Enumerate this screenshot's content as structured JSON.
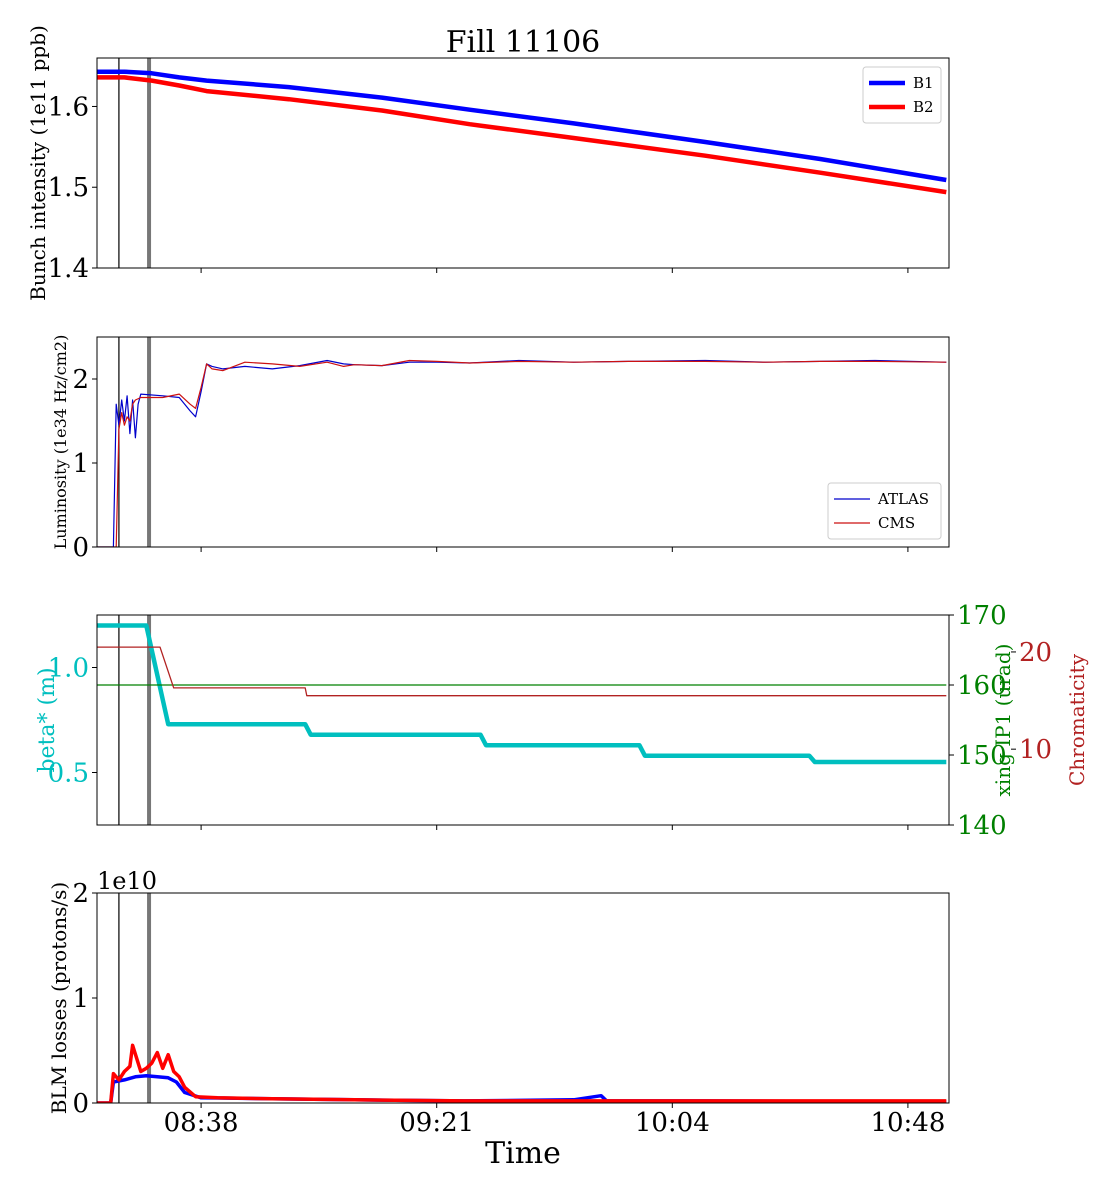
{
  "figure": {
    "title": "Fill 11106",
    "xlabel": "Time",
    "x_tick_labels": [
      "08:38",
      "09:21",
      "10:04",
      "10:48"
    ]
  },
  "colors": {
    "B1": "#0000ff",
    "B2": "#ff0000",
    "ATLAS": "#0000cc",
    "CMS": "#cc1111",
    "beta": "#00bfbf",
    "xing": "#008000",
    "chroma": "#b22222",
    "marker_thin": "#000000",
    "marker_thick": "#777777"
  },
  "chart_data": [
    {
      "type": "line",
      "ylabel": "Bunch intensity (1e11 ppb)",
      "ylim": [
        1.4,
        1.66
      ],
      "yticks": [
        "1.4",
        "1.5",
        "1.6"
      ],
      "legend_position": "upper right",
      "series": [
        {
          "name": "B1",
          "x": [
            "08:13",
            "08:18",
            "08:23",
            "08:28",
            "08:33",
            "08:48",
            "09:05",
            "09:21",
            "09:40",
            "10:04",
            "10:25",
            "10:48"
          ],
          "values": [
            1.643,
            1.643,
            1.641,
            1.636,
            1.632,
            1.624,
            1.611,
            1.596,
            1.579,
            1.556,
            1.535,
            1.509
          ]
        },
        {
          "name": "B2",
          "x": [
            "08:13",
            "08:18",
            "08:23",
            "08:28",
            "08:33",
            "08:48",
            "09:05",
            "09:21",
            "09:40",
            "10:04",
            "10:25",
            "10:48"
          ],
          "values": [
            1.636,
            1.636,
            1.632,
            1.626,
            1.619,
            1.609,
            1.595,
            1.578,
            1.561,
            1.539,
            1.518,
            1.494
          ]
        }
      ]
    },
    {
      "type": "line",
      "ylabel": "Luminosity (1e34 Hz/cm2)",
      "ylim": [
        0,
        2.5
      ],
      "yticks": [
        "0",
        "1",
        "2"
      ],
      "legend_position": "lower right",
      "series": [
        {
          "name": "ATLAS",
          "x": [
            "08:13",
            "08:16",
            "08:16.5",
            "08:17",
            "08:17.5",
            "08:18",
            "08:18.5",
            "08:19",
            "08:19.5",
            "08:20",
            "08:20.5",
            "08:21",
            "08:25",
            "08:28",
            "08:30",
            "08:31",
            "08:32",
            "08:33",
            "08:34",
            "08:36",
            "08:40",
            "08:45",
            "08:50",
            "08:55",
            "08:58",
            "09:00",
            "09:05",
            "09:10",
            "09:15",
            "09:21",
            "09:30",
            "09:40",
            "09:50",
            "10:04",
            "10:15",
            "10:25",
            "10:35",
            "10:48"
          ],
          "values": [
            0,
            0,
            1.7,
            1.45,
            1.75,
            1.5,
            1.8,
            1.35,
            1.75,
            1.3,
            1.7,
            1.82,
            1.8,
            1.78,
            1.62,
            1.55,
            1.85,
            2.18,
            2.15,
            2.12,
            2.15,
            2.12,
            2.16,
            2.22,
            2.18,
            2.17,
            2.16,
            2.2,
            2.2,
            2.19,
            2.22,
            2.2,
            2.21,
            2.22,
            2.2,
            2.21,
            2.22,
            2.2
          ]
        },
        {
          "name": "CMS",
          "x": [
            "08:13",
            "08:16.5",
            "08:17",
            "08:17.5",
            "08:18",
            "08:18.5",
            "08:19",
            "08:19.5",
            "08:20",
            "08:21",
            "08:25",
            "08:28",
            "08:30",
            "08:31",
            "08:32",
            "08:33",
            "08:34",
            "08:36",
            "08:40",
            "08:45",
            "08:50",
            "08:55",
            "08:58",
            "09:00",
            "09:05",
            "09:10",
            "09:15",
            "09:21",
            "09:30",
            "09:40",
            "09:50",
            "10:04",
            "10:15",
            "10:25",
            "10:35",
            "10:48"
          ],
          "values": [
            0,
            0,
            1.4,
            1.6,
            1.45,
            1.55,
            1.5,
            1.7,
            1.75,
            1.78,
            1.78,
            1.82,
            1.7,
            1.65,
            1.9,
            2.18,
            2.12,
            2.1,
            2.2,
            2.18,
            2.15,
            2.2,
            2.15,
            2.17,
            2.16,
            2.22,
            2.21,
            2.19,
            2.21,
            2.2,
            2.21,
            2.21,
            2.2,
            2.21,
            2.21,
            2.2
          ]
        }
      ]
    },
    {
      "type": "line",
      "ylabel": "beta* (m)",
      "ylim": [
        0.25,
        1.25
      ],
      "yticks": [
        "0.5",
        "1.0"
      ],
      "y2label": "xing IP1 (urad)",
      "y2lim": [
        140,
        170
      ],
      "y2ticks": [
        "140",
        "150",
        "160",
        "170"
      ],
      "y3label": "Chromaticity",
      "y3lim": [
        2.2,
        23.8
      ],
      "y3ticks": [
        "10",
        "20"
      ],
      "series": [
        {
          "name": "beta*",
          "axis": "left",
          "x": [
            "08:13",
            "08:22",
            "08:26",
            "08:28",
            "08:51",
            "08:52",
            "09:23",
            "09:24",
            "09:52",
            "09:53",
            "10:23",
            "10:24",
            "10:48"
          ],
          "values": [
            1.2,
            1.2,
            0.73,
            0.73,
            0.73,
            0.68,
            0.68,
            0.63,
            0.63,
            0.58,
            0.58,
            0.55,
            0.55
          ]
        },
        {
          "name": "xing IP1",
          "axis": "right",
          "x": [
            "08:13",
            "10:48"
          ],
          "values": [
            160,
            160
          ]
        },
        {
          "name": "Chromaticity",
          "axis": "right2",
          "x": [
            "08:13",
            "08:22",
            "08:24.5",
            "08:27",
            "08:51",
            "08:51.3",
            "10:48"
          ],
          "values": [
            20.5,
            20.5,
            20.5,
            16.3,
            16.3,
            15.5,
            15.5
          ]
        }
      ]
    },
    {
      "type": "line",
      "ylabel": "BLM losses (protons/s)",
      "offset_text": "1e10",
      "ylim": [
        0,
        2
      ],
      "yticks": [
        "0",
        "1",
        "2"
      ],
      "series": [
        {
          "name": "B1",
          "x": [
            "08:13",
            "08:15.5",
            "08:16",
            "08:18",
            "08:20",
            "08:22",
            "08:24",
            "08:26",
            "08:27.5",
            "08:29",
            "08:32",
            "08:45",
            "09:00",
            "09:20",
            "09:40",
            "09:45",
            "09:46",
            "10:04",
            "10:48"
          ],
          "values": [
            0,
            0,
            0.2,
            0.22,
            0.25,
            0.26,
            0.25,
            0.24,
            0.2,
            0.1,
            0.05,
            0.04,
            0.03,
            0.02,
            0.03,
            0.07,
            0.02,
            0.02,
            0.01
          ]
        },
        {
          "name": "B2",
          "x": [
            "08:13",
            "08:15.5",
            "08:16",
            "08:17",
            "08:18",
            "08:19",
            "08:19.5",
            "08:21",
            "08:22",
            "08:23",
            "08:24",
            "08:25",
            "08:26",
            "08:27",
            "08:28",
            "08:29",
            "08:31",
            "08:35",
            "08:45",
            "09:00",
            "09:20",
            "09:40",
            "10:04",
            "10:48"
          ],
          "values": [
            0,
            0,
            0.28,
            0.22,
            0.3,
            0.35,
            0.55,
            0.3,
            0.33,
            0.38,
            0.48,
            0.33,
            0.46,
            0.3,
            0.25,
            0.15,
            0.06,
            0.05,
            0.04,
            0.03,
            0.02,
            0.02,
            0.02,
            0.02
          ]
        }
      ]
    }
  ]
}
